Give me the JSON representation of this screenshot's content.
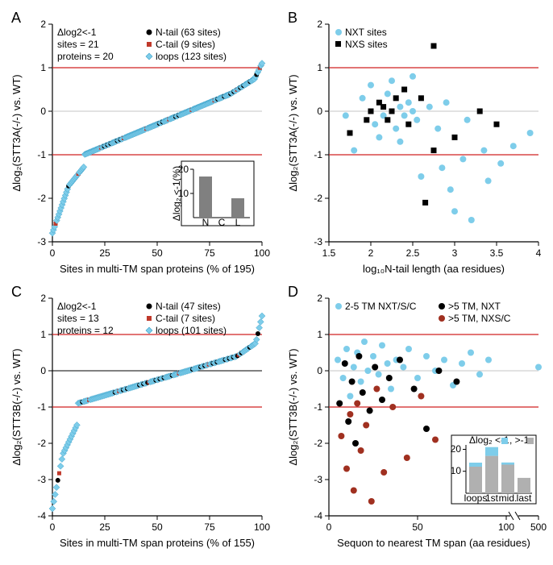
{
  "panelA": {
    "label": "A",
    "annotation": {
      "line1": "Δlog2<-1",
      "line2": "sites = 21",
      "line3": "proteins = 20"
    },
    "legend": [
      {
        "label": "N-tail (63 sites)",
        "marker": "circle",
        "color": "#000000"
      },
      {
        "label": "C-tail (9 sites)",
        "marker": "square",
        "color": "#c0392b"
      },
      {
        "label": "loops (123 sites)",
        "marker": "diamond",
        "color": "#7ecdea"
      }
    ],
    "xlabel": "Sites in multi-TM span proteins (% of 195)",
    "ylabel": "Δlog₂(STT3A(-/-) vs. WT)",
    "xlim": [
      0,
      100
    ],
    "ylim": [
      -3,
      2
    ],
    "xticks": [
      0,
      25,
      50,
      75,
      100
    ],
    "yticks": [
      -3,
      -2,
      -1,
      0,
      1,
      2
    ],
    "reflines": [
      1,
      -1
    ],
    "zeroline": 0,
    "series_colors": {
      "N": "#000000",
      "C": "#c0392b",
      "L": "#7ecdea"
    },
    "inset": {
      "ylabel": "Δlog₂ <-1(%)",
      "categories": [
        "N",
        "C",
        "L"
      ],
      "values": [
        17,
        0,
        8
      ],
      "ylim": [
        0,
        20
      ],
      "yticks": [
        10,
        20
      ],
      "bar_color": "#808080"
    }
  },
  "panelB": {
    "label": "B",
    "legend": [
      {
        "label": "NXT sites",
        "marker": "circle",
        "color": "#7ecdea"
      },
      {
        "label": "NXS sites",
        "marker": "square",
        "color": "#000000"
      }
    ],
    "xlabel": "log₁₀N-tail length (aa residues)",
    "ylabel": "Δlog₂(STT3A(-/-) vs. WT)",
    "xlim": [
      1.5,
      4
    ],
    "ylim": [
      -3,
      2
    ],
    "xticks": [
      1.5,
      2,
      2.5,
      3,
      3.5,
      4
    ],
    "yticks": [
      -3,
      -2,
      -1,
      0,
      1,
      2
    ],
    "reflines": [
      1,
      -1
    ],
    "zeroline": 0,
    "series_colors": {
      "NXT": "#7ecdea",
      "NXS": "#000000"
    }
  },
  "panelC": {
    "label": "C",
    "annotation": {
      "line1": "Δlog2<-1",
      "line2": "sites = 13",
      "line3": "proteins = 12"
    },
    "legend": [
      {
        "label": "N-tail (47 sites)",
        "marker": "circle",
        "color": "#000000"
      },
      {
        "label": "C-tail (7 sites)",
        "marker": "square",
        "color": "#c0392b"
      },
      {
        "label": "loops (101 sites)",
        "marker": "diamond",
        "color": "#7ecdea"
      }
    ],
    "xlabel": "Sites in multi-TM span proteins (% of 155)",
    "ylabel": "Δlog₂(STT3B(-/-) vs. WT)",
    "xlim": [
      0,
      100
    ],
    "ylim": [
      -4,
      2
    ],
    "xticks": [
      0,
      25,
      50,
      75,
      100
    ],
    "yticks": [
      -4,
      -3,
      -2,
      -1,
      0,
      1,
      2
    ],
    "reflines": [
      1,
      -1
    ],
    "zeroline": 0,
    "series_colors": {
      "N": "#000000",
      "C": "#c0392b",
      "L": "#7ecdea"
    }
  },
  "panelD": {
    "label": "D",
    "legend": [
      {
        "label": "2-5 TM NXT/S/C",
        "marker": "circle",
        "color": "#7ecdea"
      },
      {
        "label": ">5 TM, NXT",
        "marker": "circle",
        "color": "#000000"
      },
      {
        "label": ">5 TM, NXS/C",
        "marker": "circle",
        "color": "#a03020"
      }
    ],
    "xlabel": "Sequon to nearest TM span (aa residues)",
    "ylabel": "Δlog₂(STT3B(-/-) vs. WT)",
    "xlim": [
      0,
      500
    ],
    "xbreak": 100,
    "ylim": [
      -4,
      2
    ],
    "xticks_left": [
      0,
      50,
      100
    ],
    "xticks_right": [
      500
    ],
    "yticks": [
      -4,
      -3,
      -2,
      -1,
      0,
      1,
      2
    ],
    "reflines": [
      1,
      -1
    ],
    "zeroline": 0,
    "series_colors": {
      "A": "#7ecdea",
      "B": "#000000",
      "C": "#a03020"
    },
    "inset": {
      "title": "Δlog₂ <-1",
      "legend": [
        {
          "label": "",
          "color": "#7ecdea"
        },
        {
          "label": ", >-1",
          "color": "#b0b0b0"
        }
      ],
      "categories": [
        "loops",
        "1st",
        "mid.",
        "last"
      ],
      "stack_cyan": [
        2,
        4,
        1,
        0
      ],
      "stack_gray": [
        12,
        17,
        13,
        7
      ],
      "ylim": [
        0,
        22
      ],
      "yticks": [
        10,
        20
      ],
      "bar_color_top": "#7ecdea",
      "bar_color_bot": "#b0b0b0"
    }
  },
  "colors": {
    "axis": "#000000",
    "refline": "#d02020",
    "zeroline": "#b0b0b0",
    "background": "#ffffff"
  }
}
